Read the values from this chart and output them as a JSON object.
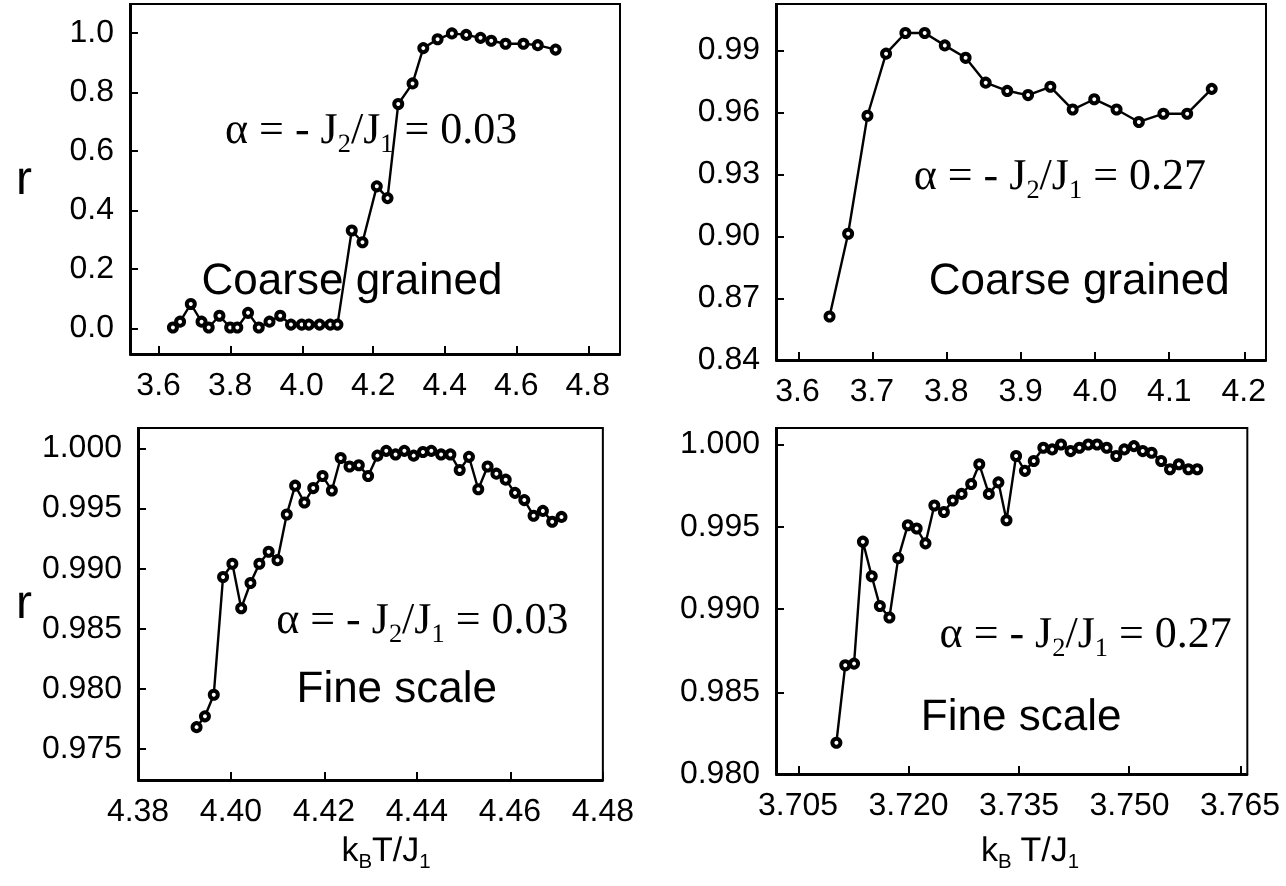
{
  "chart_data": [
    {
      "type": "line",
      "ylabel": "r",
      "annotations": [
        "α = - J$_{2}$/J$_{1}$ = 0.03",
        "Coarse grained"
      ],
      "marker": "circle",
      "line_style": "solid",
      "grid": false,
      "xlim": [
        3.52,
        4.89
      ],
      "ylim": [
        -0.09,
        1.1
      ],
      "xticks": [
        3.6,
        3.8,
        {
          "value": 4.0,
          "label": "4.0"
        },
        4.2,
        4.4,
        4.6,
        4.8
      ],
      "yticks": [
        {
          "value": 0,
          "label": "0.0"
        },
        0.2,
        0.4,
        0.6,
        0.8,
        {
          "value": 1.0,
          "label": "1.0"
        }
      ],
      "x": [
        3.64,
        3.66,
        3.69,
        3.72,
        3.74,
        3.77,
        3.8,
        3.82,
        3.85,
        3.88,
        3.91,
        3.94,
        3.97,
        4.0,
        4.02,
        4.05,
        4.08,
        4.1,
        4.14,
        4.17,
        4.21,
        4.24,
        4.27,
        4.31,
        4.34,
        4.38,
        4.42,
        4.46,
        4.5,
        4.53,
        4.57,
        4.62,
        4.66,
        4.71
      ],
      "series": [
        {
          "color": "#000000",
          "values": [
            0.0,
            0.02,
            0.08,
            0.02,
            0.0,
            0.04,
            0.0,
            0.0,
            0.05,
            0.0,
            0.02,
            0.04,
            0.01,
            0.01,
            0.01,
            0.01,
            0.01,
            0.01,
            0.33,
            0.29,
            0.48,
            0.44,
            0.76,
            0.83,
            0.95,
            0.98,
            1.0,
            0.995,
            0.985,
            0.975,
            0.965,
            0.965,
            0.96,
            0.945
          ]
        }
      ]
    },
    {
      "type": "line",
      "annotations": [
        "α = - J$_{2}$/J$_{1}$ = 0.27",
        "Coarse grained"
      ],
      "marker": "circle",
      "line_style": "solid",
      "grid": false,
      "xlim": [
        3.571,
        4.23
      ],
      "ylim": [
        0.84,
        1.012
      ],
      "xticks": [
        3.6,
        3.7,
        3.8,
        3.9,
        {
          "value": 4.0,
          "label": "4.0"
        },
        4.1,
        4.2
      ],
      "yticks": [
        0.84,
        0.87,
        {
          "value": 0.9,
          "label": "0.90"
        },
        0.93,
        0.96,
        0.99
      ],
      "x": [
        3.643,
        3.668,
        3.694,
        3.719,
        3.745,
        3.771,
        3.798,
        3.826,
        3.853,
        3.882,
        3.91,
        3.94,
        3.97,
        3.999,
        4.029,
        4.059,
        4.092,
        4.124,
        4.157
      ],
      "series": [
        {
          "color": "#000000",
          "values": [
            0.861,
            0.901,
            0.958,
            0.988,
            0.998,
            0.998,
            0.992,
            0.986,
            0.974,
            0.97,
            0.968,
            0.972,
            0.961,
            0.966,
            0.961,
            0.955,
            0.959,
            0.959,
            0.971
          ]
        }
      ]
    },
    {
      "type": "line",
      "ylabel": "r",
      "xlabel": "k$_{B}$T/J$_{1}$",
      "annotations": [
        "α = - J$_{2}$/J$_{1}$ = 0.03",
        "Fine scale"
      ],
      "marker": "circle",
      "line_style": "solid",
      "grid": false,
      "xlim": [
        4.38,
        4.48
      ],
      "ylim": [
        0.9724,
        1.0017
      ],
      "xticks": [
        {
          "value": 4.38,
          "label": "4.38"
        },
        {
          "value": 4.4,
          "label": "4.40"
        },
        {
          "value": 4.42,
          "label": "4.42"
        },
        {
          "value": 4.44,
          "label": "4.44"
        },
        {
          "value": 4.46,
          "label": "4.46"
        },
        {
          "value": 4.48,
          "label": "4.48"
        }
      ],
      "yticks": [
        0.975,
        {
          "value": 0.98,
          "label": "0.980"
        },
        0.985,
        {
          "value": 0.99,
          "label": "0.990"
        },
        0.995,
        {
          "value": 1.0,
          "label": "1.000"
        }
      ],
      "x": [
        4.3926,
        4.3944,
        4.3963,
        4.3983,
        4.4003,
        4.4022,
        4.4042,
        4.4061,
        4.4081,
        4.41,
        4.412,
        4.4138,
        4.4158,
        4.4177,
        4.4197,
        4.4217,
        4.4236,
        4.4255,
        4.4275,
        4.4295,
        4.4315,
        4.4334,
        4.4354,
        4.4373,
        4.4393,
        4.4413,
        4.4431,
        4.4452,
        4.4472,
        4.4492,
        4.4512,
        4.4532,
        4.4552,
        4.4571,
        4.4591,
        4.4611,
        4.4631,
        4.4651,
        4.4671,
        4.4691,
        4.4711
      ],
      "series": [
        {
          "color": "#000000",
          "values": [
            0.9768,
            0.9777,
            0.9795,
            0.9893,
            0.9904,
            0.9867,
            0.9888,
            0.9904,
            0.9914,
            0.9907,
            0.9945,
            0.9969,
            0.9955,
            0.9967,
            0.9977,
            0.9965,
            0.9992,
            0.9985,
            0.9986,
            0.9977,
            0.9994,
            0.9998,
            0.9995,
            0.9998,
            0.9994,
            0.9997,
            0.9998,
            0.9995,
            0.9995,
            0.9982,
            0.9993,
            0.9966,
            0.9985,
            0.9979,
            0.9974,
            0.9963,
            0.9957,
            0.9944,
            0.9948,
            0.9939,
            0.9943
          ]
        }
      ]
    },
    {
      "type": "line",
      "xlabel": "k$_{B}$ T/J$_{1}$",
      "annotations": [
        "α = - J$_{2}$/J$_{1}$ = 0.27",
        "Fine scale"
      ],
      "marker": "circle",
      "line_style": "solid",
      "grid": false,
      "xlim": [
        3.702,
        3.766
      ],
      "ylim": [
        0.98,
        1.001
      ],
      "xticks": [
        3.705,
        {
          "value": 3.72,
          "label": "3.720"
        },
        3.735,
        {
          "value": 3.75,
          "label": "3.750"
        },
        3.765
      ],
      "yticks": [
        {
          "value": 0.98,
          "label": "0.980"
        },
        0.985,
        {
          "value": 0.99,
          "label": "0.990"
        },
        0.995,
        {
          "value": 1.0,
          "label": "1.000"
        }
      ],
      "x": [
        3.7102,
        3.7114,
        3.7126,
        3.7138,
        3.715,
        3.7161,
        3.7174,
        3.7186,
        3.7199,
        3.7211,
        3.7223,
        3.7235,
        3.7248,
        3.726,
        3.7272,
        3.7285,
        3.7296,
        3.7309,
        3.7322,
        3.7333,
        3.7346,
        3.7358,
        3.737,
        3.7383,
        3.7395,
        3.7407,
        3.742,
        3.7432,
        3.7444,
        3.7456,
        3.7469,
        3.7482,
        3.7493,
        3.7506,
        3.7518,
        3.753,
        3.7543,
        3.7555,
        3.7567,
        3.758,
        3.7592
      ],
      "series": [
        {
          "color": "#000000",
          "values": [
            0.9819,
            0.9866,
            0.9867,
            0.9941,
            0.992,
            0.9902,
            0.9895,
            0.9931,
            0.9951,
            0.9949,
            0.994,
            0.9963,
            0.9959,
            0.9966,
            0.997,
            0.9976,
            0.9988,
            0.997,
            0.9977,
            0.9954,
            0.9993,
            0.9984,
            0.999,
            0.9998,
            0.9997,
            1.0,
            0.9996,
            0.9998,
            1.0,
            1.0,
            0.9998,
            0.9993,
            0.9997,
            0.9999,
            0.9996,
            0.9995,
            0.999,
            0.9985,
            0.9988,
            0.9985,
            0.9985
          ]
        }
      ]
    }
  ]
}
